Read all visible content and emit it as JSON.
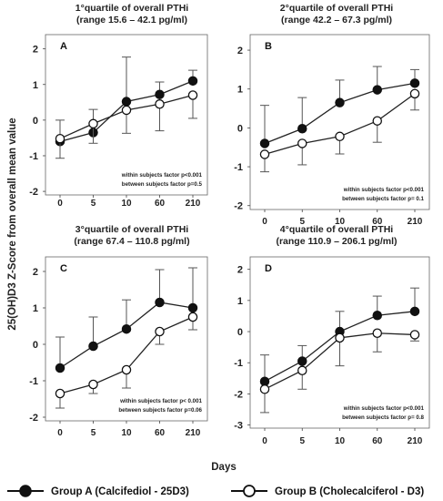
{
  "figure": {
    "ylabel": "25(OH)D3 Z-Score from overall mean value",
    "xlabel": "Days"
  },
  "legend": {
    "entries": [
      {
        "label": "Group A (Calcifediol - 25D3)",
        "marker": "filled"
      },
      {
        "label": "Group B (Cholecalciferol - D3)",
        "marker": "open"
      }
    ]
  },
  "chart_data": [
    {
      "type": "line",
      "letter": "A",
      "title_line1": "1°quartile of overall PTHi",
      "title_line2": "(range 15.6 – 42.1 pg/ml)",
      "categories": [
        "0",
        "5",
        "10",
        "60",
        "210"
      ],
      "ylim": [
        -2.1,
        2.4
      ],
      "yticks": [
        -2,
        -1,
        0,
        1,
        2
      ],
      "grid": false,
      "series": [
        {
          "name": "Group A (Calcifediol - 25D3)",
          "marker": "filled",
          "values": [
            -0.6,
            -0.35,
            0.52,
            0.72,
            1.1
          ],
          "error": [
            0.6,
            0.65,
            1.25,
            0.35,
            0.3
          ]
        },
        {
          "name": "Group B (Cholecalciferol - D3)",
          "marker": "open",
          "values": [
            -0.52,
            -0.1,
            0.28,
            0.45,
            0.7
          ],
          "error": [
            0.55,
            0.55,
            0.65,
            0.75,
            0.65
          ]
        }
      ],
      "annotations": [
        "within subjects factor p<0.001",
        "between subjects factor p=0.5"
      ]
    },
    {
      "type": "line",
      "letter": "B",
      "title_line1": "2°quartile of overall PTHi",
      "title_line2": "(range 42.2 – 67.3 pg/ml)",
      "categories": [
        "0",
        "5",
        "10",
        "60",
        "210"
      ],
      "ylim": [
        -2.1,
        2.4
      ],
      "yticks": [
        -2,
        -1,
        0,
        1,
        2
      ],
      "grid": false,
      "series": [
        {
          "name": "Group A (Calcifediol - 25D3)",
          "marker": "filled",
          "values": [
            -0.4,
            -0.02,
            0.65,
            0.98,
            1.15
          ],
          "error": [
            0.98,
            0.8,
            0.58,
            0.6,
            0.35
          ]
        },
        {
          "name": "Group B (Cholecalciferol - D3)",
          "marker": "open",
          "values": [
            -0.68,
            -0.4,
            -0.22,
            0.18,
            0.88
          ],
          "error": [
            0.45,
            0.55,
            0.45,
            0.55,
            0.42
          ]
        }
      ],
      "annotations": [
        "within subjects factor p<0.001",
        "between subjects factor p= 0.1"
      ]
    },
    {
      "type": "line",
      "letter": "C",
      "title_line1": "3°quartile of overall PTHi",
      "title_line2": "(range 67.4 – 110.8 pg/ml)",
      "categories": [
        "0",
        "5",
        "10",
        "60",
        "210"
      ],
      "ylim": [
        -2.1,
        2.4
      ],
      "yticks": [
        -2,
        -1,
        0,
        1,
        2
      ],
      "grid": false,
      "series": [
        {
          "name": "Group A (Calcifediol - 25D3)",
          "marker": "filled",
          "values": [
            -0.65,
            -0.05,
            0.42,
            1.15,
            1.0
          ],
          "error": [
            0.85,
            0.8,
            0.8,
            0.9,
            1.1
          ]
        },
        {
          "name": "Group B (Cholecalciferol - D3)",
          "marker": "open",
          "values": [
            -1.35,
            -1.1,
            -0.7,
            0.35,
            0.75
          ],
          "error": [
            0.4,
            0.25,
            0.5,
            0.35,
            0.35
          ]
        }
      ],
      "annotations": [
        "within subjects factor p< 0.001",
        "between subjects factor p=0.06"
      ]
    },
    {
      "type": "line",
      "letter": "D",
      "title_line1": "4°quartile of overall PTHi",
      "title_line2": "(range 110.9 – 206.1 pg/ml)",
      "categories": [
        "0",
        "5",
        "10",
        "60",
        "210"
      ],
      "ylim": [
        -3.1,
        2.4
      ],
      "yticks": [
        -3,
        -2,
        -1,
        0,
        1,
        2
      ],
      "grid": false,
      "series": [
        {
          "name": "Group A (Calcifediol - 25D3)",
          "marker": "filled",
          "values": [
            -1.6,
            -0.95,
            0.0,
            0.52,
            0.65
          ],
          "error": [
            0.85,
            0.5,
            0.65,
            0.62,
            0.75
          ]
        },
        {
          "name": "Group B (Cholecalciferol - D3)",
          "marker": "open",
          "values": [
            -1.85,
            -1.25,
            -0.2,
            -0.05,
            -0.1
          ],
          "error": [
            0.75,
            0.6,
            0.9,
            0.6,
            0.2
          ]
        }
      ],
      "annotations": [
        "within subjects factor p<0.001",
        "between subjects factor p= 0.8"
      ]
    }
  ]
}
